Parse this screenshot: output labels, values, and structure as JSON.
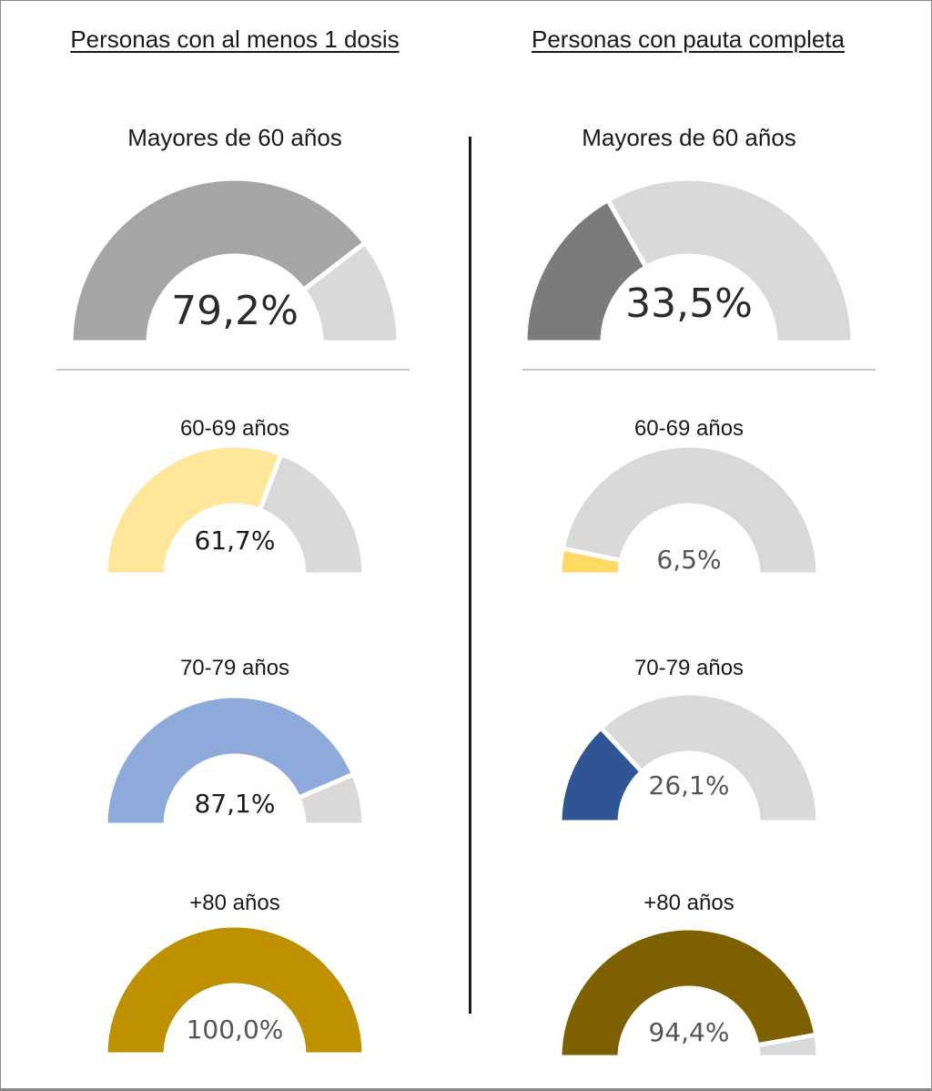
{
  "headers": {
    "left": "Personas con al menos 1 dosis",
    "right": "Personas con pauta completa"
  },
  "colors": {
    "background_arc": "#d9d9d9",
    "separator": "#c8c8c8"
  },
  "chart_data": [
    {
      "type": "gauge",
      "column": "Personas con al menos 1 dosis",
      "label": "Mayores de 60 años",
      "value": 79.2,
      "value_label": "79,2%",
      "max": 100,
      "color": "#a5a5a5"
    },
    {
      "type": "gauge",
      "column": "Personas con al menos 1 dosis",
      "label": "60-69 años",
      "value": 61.7,
      "value_label": "61,7%",
      "max": 100,
      "color": "#ffe699"
    },
    {
      "type": "gauge",
      "column": "Personas con al menos 1 dosis",
      "label": "70-79 años",
      "value": 87.1,
      "value_label": "87,1%",
      "max": 100,
      "color": "#8eaadb"
    },
    {
      "type": "gauge",
      "column": "Personas con al menos 1 dosis",
      "label": "+80 años",
      "value": 100.0,
      "value_label": "100,0%",
      "max": 100,
      "color": "#bf9000"
    },
    {
      "type": "gauge",
      "column": "Personas con pauta completa",
      "label": "Mayores de 60 años",
      "value": 33.5,
      "value_label": "33,5%",
      "max": 100,
      "color": "#7b7b7b"
    },
    {
      "type": "gauge",
      "column": "Personas con pauta completa",
      "label": "60-69 años",
      "value": 6.5,
      "value_label": "6,5%",
      "max": 100,
      "color": "#ffd966"
    },
    {
      "type": "gauge",
      "column": "Personas con pauta completa",
      "label": "70-79 años",
      "value": 26.1,
      "value_label": "26,1%",
      "max": 100,
      "color": "#2f5597"
    },
    {
      "type": "gauge",
      "column": "Personas con pauta completa",
      "label": "+80 años",
      "value": 94.4,
      "value_label": "94,4%",
      "max": 100,
      "color": "#7f6000"
    }
  ]
}
